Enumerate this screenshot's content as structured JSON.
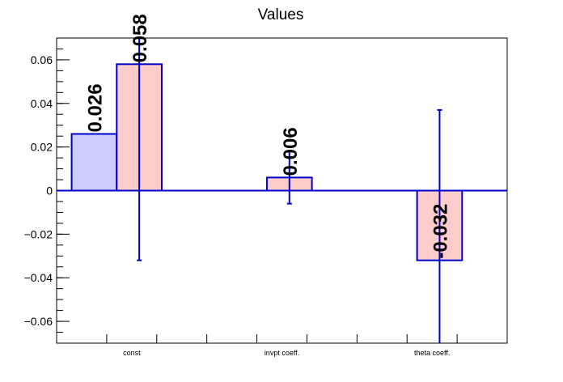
{
  "chart_data": {
    "type": "bar",
    "title": "Values",
    "xlabel": "",
    "ylabel": "",
    "ylim": [
      -0.07,
      0.07
    ],
    "yticks": [
      -0.06,
      -0.04,
      -0.02,
      0,
      0.02,
      0.04,
      0.06
    ],
    "ytick_labels": [
      "−0.06",
      "−0.04",
      "−0.02",
      "0",
      "0.02",
      "0.04",
      "0.06"
    ],
    "categories": [
      "const",
      "invpt coeff.",
      "theta coeff."
    ],
    "series": [
      {
        "color": "#ccccff",
        "edge_color": "#0000cc",
        "values": [
          0.026,
          null,
          null
        ],
        "errors": [
          null,
          null,
          null
        ],
        "labels": [
          "0.026",
          "",
          ""
        ]
      },
      {
        "color": "#ffcccc",
        "edge_color": "#0000cc",
        "values": [
          0.058,
          0.006,
          -0.032
        ],
        "errors": [
          0.09,
          0.012,
          0.069
        ],
        "labels": [
          "0.058",
          "0.006",
          "-0.032"
        ]
      }
    ],
    "grid": false,
    "legend": "none"
  }
}
